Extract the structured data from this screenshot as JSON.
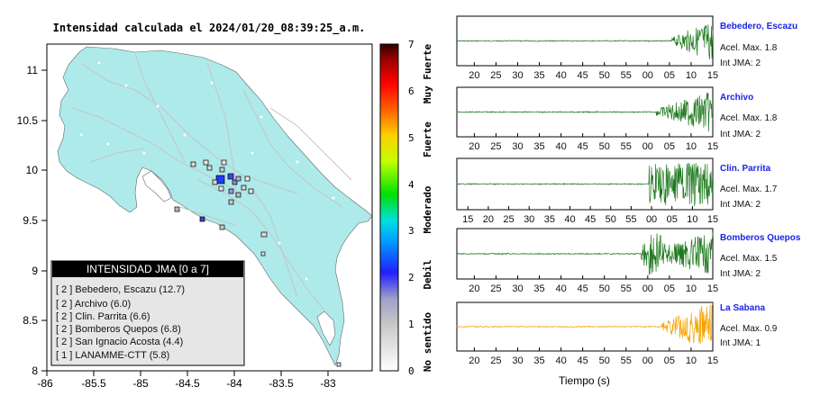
{
  "map": {
    "title": "Intensidad calculada el 2024/01/20_08:39:25_a.m.",
    "x_ticks": [
      "-86",
      "-85.5",
      "-85",
      "-84.5",
      "-84",
      "-83.5",
      "-83"
    ],
    "y_ticks": [
      "11",
      "10.5",
      "10",
      "9.5",
      "9",
      "8.5",
      "8"
    ],
    "land_color": "#aeeaea",
    "legend": {
      "title": "INTENSIDAD JMA [0 a 7]",
      "items": [
        "[ 2 ] Bebedero, Escazu (12.7)",
        "[ 2 ] Archivo (6.0)",
        "[ 2 ] Clin. Parrita (6.6)",
        "[ 2 ] Bomberos Quepos (6.8)",
        "[ 2 ] San Ignacio Acosta (4.4)",
        "[ 1 ] LANAMME-CTT (5.8)"
      ]
    }
  },
  "colorbar": {
    "ticks": [
      "7",
      "6",
      "5",
      "4",
      "3",
      "2",
      "1",
      "0"
    ],
    "labels": [
      "Muy Fuerte",
      "Fuerte",
      "Moderado",
      "Debil",
      "No sentido"
    ]
  },
  "stations": [
    {
      "name": "Bebedero, Escazu",
      "accel": "Acel. Max. 1.8",
      "jma": "Int JMA: 2",
      "ticks": [
        "20",
        "25",
        "30",
        "35",
        "40",
        "45",
        "50",
        "55",
        "00",
        "05",
        "10",
        "15"
      ],
      "color": "#1f7a1f"
    },
    {
      "name": "Archivo",
      "accel": "Acel. Max. 1.8",
      "jma": "Int JMA: 2",
      "ticks": [
        "20",
        "25",
        "30",
        "35",
        "40",
        "45",
        "50",
        "55",
        "00",
        "05",
        "10",
        "15"
      ],
      "color": "#1f7a1f"
    },
    {
      "name": "Clin. Parrita",
      "accel": "Acel. Max. 1.7",
      "jma": "Int JMA: 2",
      "ticks": [
        "15",
        "20",
        "25",
        "30",
        "35",
        "40",
        "45",
        "50",
        "55",
        "00",
        "05",
        "10",
        "15"
      ],
      "color": "#1f7a1f"
    },
    {
      "name": "Bomberos Quepos",
      "accel": "Acel. Max. 1.5",
      "jma": "Int JMA: 2",
      "ticks": [
        "20",
        "25",
        "30",
        "35",
        "40",
        "45",
        "50",
        "55",
        "00",
        "05",
        "10",
        "15"
      ],
      "color": "#1f7a1f"
    },
    {
      "name": "La Sabana",
      "accel": "Acel. Max. 0.9",
      "jma": "Int JMA: 1",
      "ticks": [
        "20",
        "25",
        "30",
        "35",
        "40",
        "45",
        "50",
        "55",
        "00",
        "05",
        "10",
        "15"
      ],
      "color": "#f5a300"
    }
  ],
  "xlabel": "Tiempo (s)"
}
